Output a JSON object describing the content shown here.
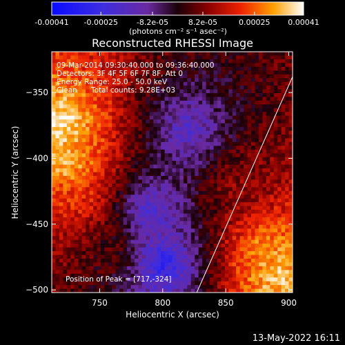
{
  "chart_data": {
    "type": "heatmap",
    "title": "Reconstructed RHESSI Image",
    "xlabel": "Heliocentric X (arcsec)",
    "ylabel": "Heliocentric Y (arcsec)",
    "xlim": [
      712,
      903
    ],
    "ylim": [
      -502,
      -319
    ],
    "x_ticks": [
      750,
      800,
      850,
      900
    ],
    "y_ticks": [
      -350,
      -400,
      -450,
      -500
    ],
    "colorbar": {
      "ticks": [
        -0.00041,
        -0.00025,
        -8.2e-05,
        8.2e-05,
        0.00025,
        0.00041
      ],
      "tick_labels": [
        "-0.00041",
        "-0.00025",
        "-8.2e-05",
        "8.2e-05",
        "0.00025",
        "0.00041"
      ],
      "range": [
        -0.00041,
        0.00041
      ],
      "colormap": "blue-purple-red-yellow-white",
      "unit_label": "(photons cm⁻² s⁻¹ asec⁻²)"
    },
    "annotations": {
      "time_range": "09-Mar-2014 09:30:40.000 to 09:36:40.000",
      "detectors": "Detectors: 3F 4F 5F 6F 7F 8F, Att 0",
      "energy": "Energy Range: 25.0 - 50.0 keV",
      "method": "Clean",
      "total_counts": "Total counts: 9.28E+03",
      "peak": "Position of Peak = [717,-324]"
    },
    "peak_position": [
      717,
      -324
    ],
    "limb_line": [
      [
        827,
        -502
      ],
      [
        903,
        -338
      ]
    ],
    "regions": [
      {
        "x": 720,
        "y": -375,
        "level": 0.00039
      },
      {
        "x": 725,
        "y": -405,
        "level": 0.00035
      },
      {
        "x": 735,
        "y": -430,
        "level": 0.0002
      },
      {
        "x": 760,
        "y": -470,
        "level": 5e-05
      },
      {
        "x": 790,
        "y": -440,
        "level": -0.00022
      },
      {
        "x": 800,
        "y": -480,
        "level": -0.0003
      },
      {
        "x": 820,
        "y": -380,
        "level": -0.00018
      },
      {
        "x": 860,
        "y": -420,
        "level": 0.0001
      },
      {
        "x": 880,
        "y": -470,
        "level": 0.0003
      },
      {
        "x": 890,
        "y": -490,
        "level": 0.00036
      }
    ]
  },
  "footer": {
    "date": "13-May-2022 16:11"
  }
}
